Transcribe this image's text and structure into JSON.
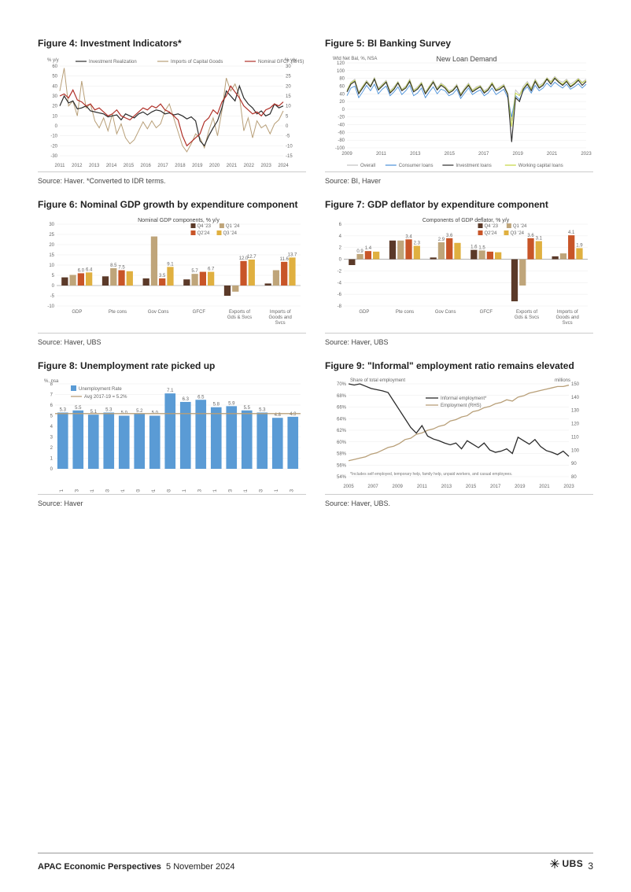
{
  "colors": {
    "text": "#333333",
    "muted": "#666666",
    "grid": "#dddddd",
    "axis": "#888888",
    "q4_23": "#5b3a29",
    "q1_24": "#bfa57a",
    "q2_24": "#c85528",
    "q3_24": "#e0b040",
    "line_black": "#2b2b2b",
    "line_tan": "#b89f78",
    "line_red": "#b03028",
    "gray_line": "#c0c0c0",
    "blue_line": "#4a90d9",
    "yellowgreen": "#c4d640",
    "bar_blue": "#5a9bd5"
  },
  "fig4": {
    "title": "Figure 4: Investment Indicators*",
    "source": "Source: Haver. *Converted to IDR terms.",
    "yleft_label": "% y/y",
    "yright_label": "% y/y",
    "x_years": [
      "2011",
      "2012",
      "2013",
      "2014",
      "2015",
      "2016",
      "2017",
      "2018",
      "2019",
      "2020",
      "2021",
      "2022",
      "2023",
      "2024"
    ],
    "yleft_ticks": [
      -30,
      -20,
      -10,
      0,
      10,
      20,
      30,
      40,
      50,
      60
    ],
    "yright_ticks": [
      -15,
      -10,
      -5,
      0,
      5,
      10,
      15,
      20,
      25,
      30
    ],
    "legend": [
      "Investment Realization",
      "Imports of Capital Goods",
      "Nominal GFCF (RHS)"
    ],
    "series": {
      "invest_real": [
        20,
        30,
        23,
        25,
        17,
        18,
        20,
        15,
        14,
        13,
        12,
        9,
        10,
        11,
        6,
        12,
        10,
        8,
        12,
        14,
        11,
        14,
        16,
        15,
        12,
        13,
        11,
        12,
        10,
        7,
        9,
        5,
        -15,
        -20,
        -10,
        -2,
        5,
        18,
        35,
        30,
        25,
        40,
        28,
        22,
        18,
        12,
        15,
        10,
        12,
        22,
        18,
        20
      ],
      "imports_cap": [
        35,
        58,
        20,
        25,
        10,
        45,
        18,
        22,
        5,
        -2,
        8,
        -5,
        12,
        -8,
        2,
        -12,
        -18,
        -14,
        -5,
        4,
        -3,
        5,
        -2,
        2,
        15,
        22,
        8,
        -6,
        -20,
        -26,
        -18,
        -8,
        -12,
        -22,
        -5,
        8,
        -10,
        15,
        48,
        35,
        42,
        30,
        -5,
        8,
        -12,
        5,
        -2,
        1,
        -8,
        2,
        6,
        15
      ],
      "nominal_gfcf_rhs": [
        15,
        16,
        14,
        18,
        13,
        12,
        10,
        11,
        8,
        9,
        7,
        5,
        6,
        8,
        5,
        4,
        3,
        5,
        7,
        9,
        8,
        10,
        9,
        11,
        8,
        7,
        5,
        3,
        -5,
        -10,
        -8,
        -6,
        -4,
        2,
        4,
        8,
        6,
        12,
        15,
        20,
        17,
        14,
        10,
        8,
        6,
        7,
        5,
        8,
        9,
        11,
        10,
        12
      ]
    }
  },
  "fig5": {
    "title": "Figure 5: BI Banking Survey",
    "subtitle": "New Loan Demand",
    "source": "Source: BI, Haver",
    "yleft_label": "Wtd Net Bal, %, NSA",
    "x_years": [
      "2009",
      "2011",
      "2013",
      "2015",
      "2017",
      "2019",
      "2021",
      "2023"
    ],
    "y_ticks": [
      -100,
      -80,
      -60,
      -40,
      -20,
      0,
      20,
      40,
      60,
      80,
      100,
      120
    ],
    "legend": [
      "Overall",
      "Consumer loans",
      "Investment loans",
      "Working capital loans"
    ],
    "series": {
      "overall": [
        50,
        70,
        78,
        45,
        60,
        75,
        62,
        82,
        55,
        65,
        75,
        48,
        58,
        72,
        52,
        60,
        78,
        50,
        58,
        70,
        45,
        60,
        75,
        55,
        68,
        60,
        48,
        52,
        65,
        40,
        55,
        68,
        50,
        58,
        62,
        48,
        55,
        70,
        52,
        58,
        65,
        42,
        -30,
        50,
        38,
        60,
        72,
        55,
        78,
        62,
        68,
        82,
        72,
        85,
        75,
        70,
        78,
        65,
        72,
        80,
        70,
        78
      ],
      "consumer": [
        35,
        55,
        60,
        30,
        45,
        62,
        48,
        65,
        40,
        52,
        60,
        35,
        45,
        58,
        38,
        48,
        62,
        35,
        42,
        55,
        30,
        45,
        58,
        40,
        52,
        48,
        35,
        40,
        52,
        28,
        42,
        55,
        38,
        45,
        50,
        35,
        42,
        55,
        38,
        45,
        52,
        30,
        -20,
        35,
        25,
        48,
        58,
        42,
        62,
        48,
        55,
        68,
        58,
        70,
        62,
        55,
        65,
        52,
        58,
        66,
        55,
        65
      ],
      "investment": [
        45,
        65,
        72,
        40,
        55,
        70,
        58,
        78,
        50,
        60,
        70,
        42,
        52,
        68,
        48,
        55,
        72,
        45,
        52,
        65,
        40,
        55,
        70,
        50,
        62,
        55,
        42,
        48,
        60,
        35,
        50,
        62,
        45,
        52,
        58,
        42,
        50,
        65,
        48,
        52,
        60,
        38,
        -85,
        30,
        20,
        52,
        65,
        48,
        72,
        55,
        62,
        78,
        65,
        80,
        70,
        62,
        72,
        58,
        65,
        75,
        62,
        72
      ],
      "working": [
        48,
        68,
        75,
        42,
        58,
        72,
        60,
        80,
        52,
        62,
        72,
        45,
        55,
        70,
        50,
        58,
        75,
        48,
        55,
        68,
        42,
        58,
        72,
        52,
        65,
        58,
        45,
        50,
        62,
        38,
        52,
        65,
        48,
        55,
        60,
        45,
        52,
        68,
        50,
        55,
        62,
        40,
        -45,
        42,
        35,
        55,
        68,
        52,
        75,
        58,
        65,
        80,
        70,
        82,
        72,
        65,
        75,
        60,
        68,
        78,
        68,
        75
      ]
    }
  },
  "fig6": {
    "title": "Figure 6: Nominal GDP growth by expenditure component",
    "subtitle": "Nominal GDP components, % y/y",
    "source": "Source: Haver, UBS",
    "y_ticks": [
      -10,
      -5,
      0,
      5,
      10,
      15,
      20,
      25,
      30
    ],
    "categories": [
      "GDP",
      "Pte cons",
      "Gov Cons",
      "GFCF",
      "Exports of Gds & Svcs",
      "Imports of Goods and Svcs"
    ],
    "legend": [
      "Q4 '23",
      "Q1 '24",
      "Q2'24",
      "Q3 '24"
    ],
    "data": [
      [
        4.0,
        5.2,
        6.0,
        6.4
      ],
      [
        4.5,
        8.5,
        7.5,
        7.0
      ],
      [
        3.5,
        24.0,
        3.5,
        9.1
      ],
      [
        3.0,
        5.7,
        6.7,
        6.7
      ],
      [
        -5.0,
        -3.0,
        12.0,
        12.7
      ],
      [
        1.0,
        7.5,
        11.6,
        13.7
      ]
    ],
    "labels": [
      [
        "",
        "",
        "6.0",
        "6.4"
      ],
      [
        "",
        "8.5",
        "7.5",
        ""
      ],
      [
        "",
        "",
        "3.5",
        "9.1"
      ],
      [
        "",
        "5.7",
        "",
        "6.7"
      ],
      [
        "",
        "",
        "12.0",
        "12.7"
      ],
      [
        "",
        "",
        "11.6",
        "13.7"
      ]
    ]
  },
  "fig7": {
    "title": "Figure 7: GDP deflator by expenditure component",
    "subtitle": "Components of GDP deflator, % y/y",
    "source": "Source: Haver, UBS",
    "y_ticks": [
      -8,
      -6,
      -4,
      -2,
      0,
      2,
      4,
      6
    ],
    "categories": [
      "GDP",
      "Pte cons",
      "Gov Cons",
      "GFCF",
      "Exports of Gds & Svcs",
      "Imports of Goods and Svcs"
    ],
    "legend": [
      "Q4 '23",
      "Q1 '24",
      "Q2'24",
      "Q3 '24"
    ],
    "data": [
      [
        -1.0,
        0.9,
        1.4,
        1.3
      ],
      [
        3.2,
        3.2,
        3.4,
        2.3
      ],
      [
        0.3,
        2.9,
        3.6,
        2.8
      ],
      [
        1.6,
        1.5,
        1.3,
        1.2
      ],
      [
        -7.2,
        -4.5,
        3.6,
        3.1
      ],
      [
        0.5,
        1.0,
        4.1,
        1.9
      ]
    ],
    "labels": [
      [
        "",
        "0.9",
        "1.4",
        ""
      ],
      [
        "",
        "",
        "3.4",
        "2.3"
      ],
      [
        "",
        "2.9",
        "3.6",
        ""
      ],
      [
        "1.6",
        "1.5",
        "",
        ""
      ],
      [
        "",
        "",
        "3.6",
        "3.1"
      ],
      [
        "",
        "",
        "4.1",
        "1.9"
      ]
    ]
  },
  "fig8": {
    "title": "Figure 8: Unemployment rate picked up",
    "source": "Source: Haver",
    "yleft_label": "%, nsa",
    "y_ticks": [
      0,
      1,
      2,
      3,
      4,
      5,
      6,
      7,
      8
    ],
    "legend": [
      "Unemployment Rate",
      "Avg 2017-19 = 5.2%"
    ],
    "avg_line": 5.2,
    "periods": [
      "20171",
      "20173",
      "20181",
      "20183",
      "20191",
      "20193",
      "20201",
      "20203",
      "20211",
      "20213",
      "20221",
      "20223",
      "20231",
      "20233",
      "20241",
      "20243"
    ],
    "values": [
      5.3,
      5.5,
      5.1,
      5.3,
      5.0,
      5.2,
      5.0,
      7.1,
      6.3,
      6.5,
      5.8,
      5.9,
      5.5,
      5.3,
      4.8,
      4.9
    ]
  },
  "fig9": {
    "title": "Figure 9: \"Informal\" employment ratio remains elevated",
    "source": "Source: Haver, UBS.",
    "yleft_label": "Share of total employment",
    "yright_label": "millions",
    "note": "*Includes self employed, temporary help, family help, unpaid workers, and casual employees.",
    "x_years": [
      "2005",
      "2007",
      "2009",
      "2011",
      "2013",
      "2015",
      "2017",
      "2019",
      "2021",
      "2023"
    ],
    "yleft_ticks": [
      54,
      56,
      58,
      60,
      62,
      64,
      66,
      68,
      70
    ],
    "yright_ticks": [
      80,
      90,
      100,
      110,
      120,
      130,
      140,
      150
    ],
    "legend": [
      "Informal employment*",
      "Employment (RHS)"
    ],
    "series": {
      "informal": [
        70,
        69.8,
        70,
        69.6,
        69.2,
        69.0,
        68.8,
        68.5,
        67.0,
        65.5,
        64.0,
        62.5,
        61.5,
        62.8,
        61.0,
        60.5,
        60.2,
        59.8,
        59.5,
        59.8,
        58.8,
        60.2,
        59.6,
        59.0,
        59.8,
        58.6,
        58.2,
        58.4,
        58.8,
        58.0,
        60.8,
        60.2,
        59.6,
        60.4,
        59.2,
        58.5,
        58.2,
        57.8,
        58.4,
        57.5
      ],
      "employment_rhs": [
        92,
        93,
        94,
        95,
        97,
        98,
        100,
        102,
        103,
        105,
        108,
        109,
        112,
        113,
        115,
        116,
        118,
        119,
        122,
        123,
        125,
        126,
        129,
        130,
        132,
        133,
        135,
        136,
        138,
        137,
        140,
        141,
        143,
        144,
        145,
        146,
        147,
        148,
        148,
        149
      ]
    }
  },
  "footer": {
    "left_bold": "APAC Economic Perspectives",
    "left_date": "5 November 2024",
    "publisher": "UBS",
    "page_num": "3"
  }
}
